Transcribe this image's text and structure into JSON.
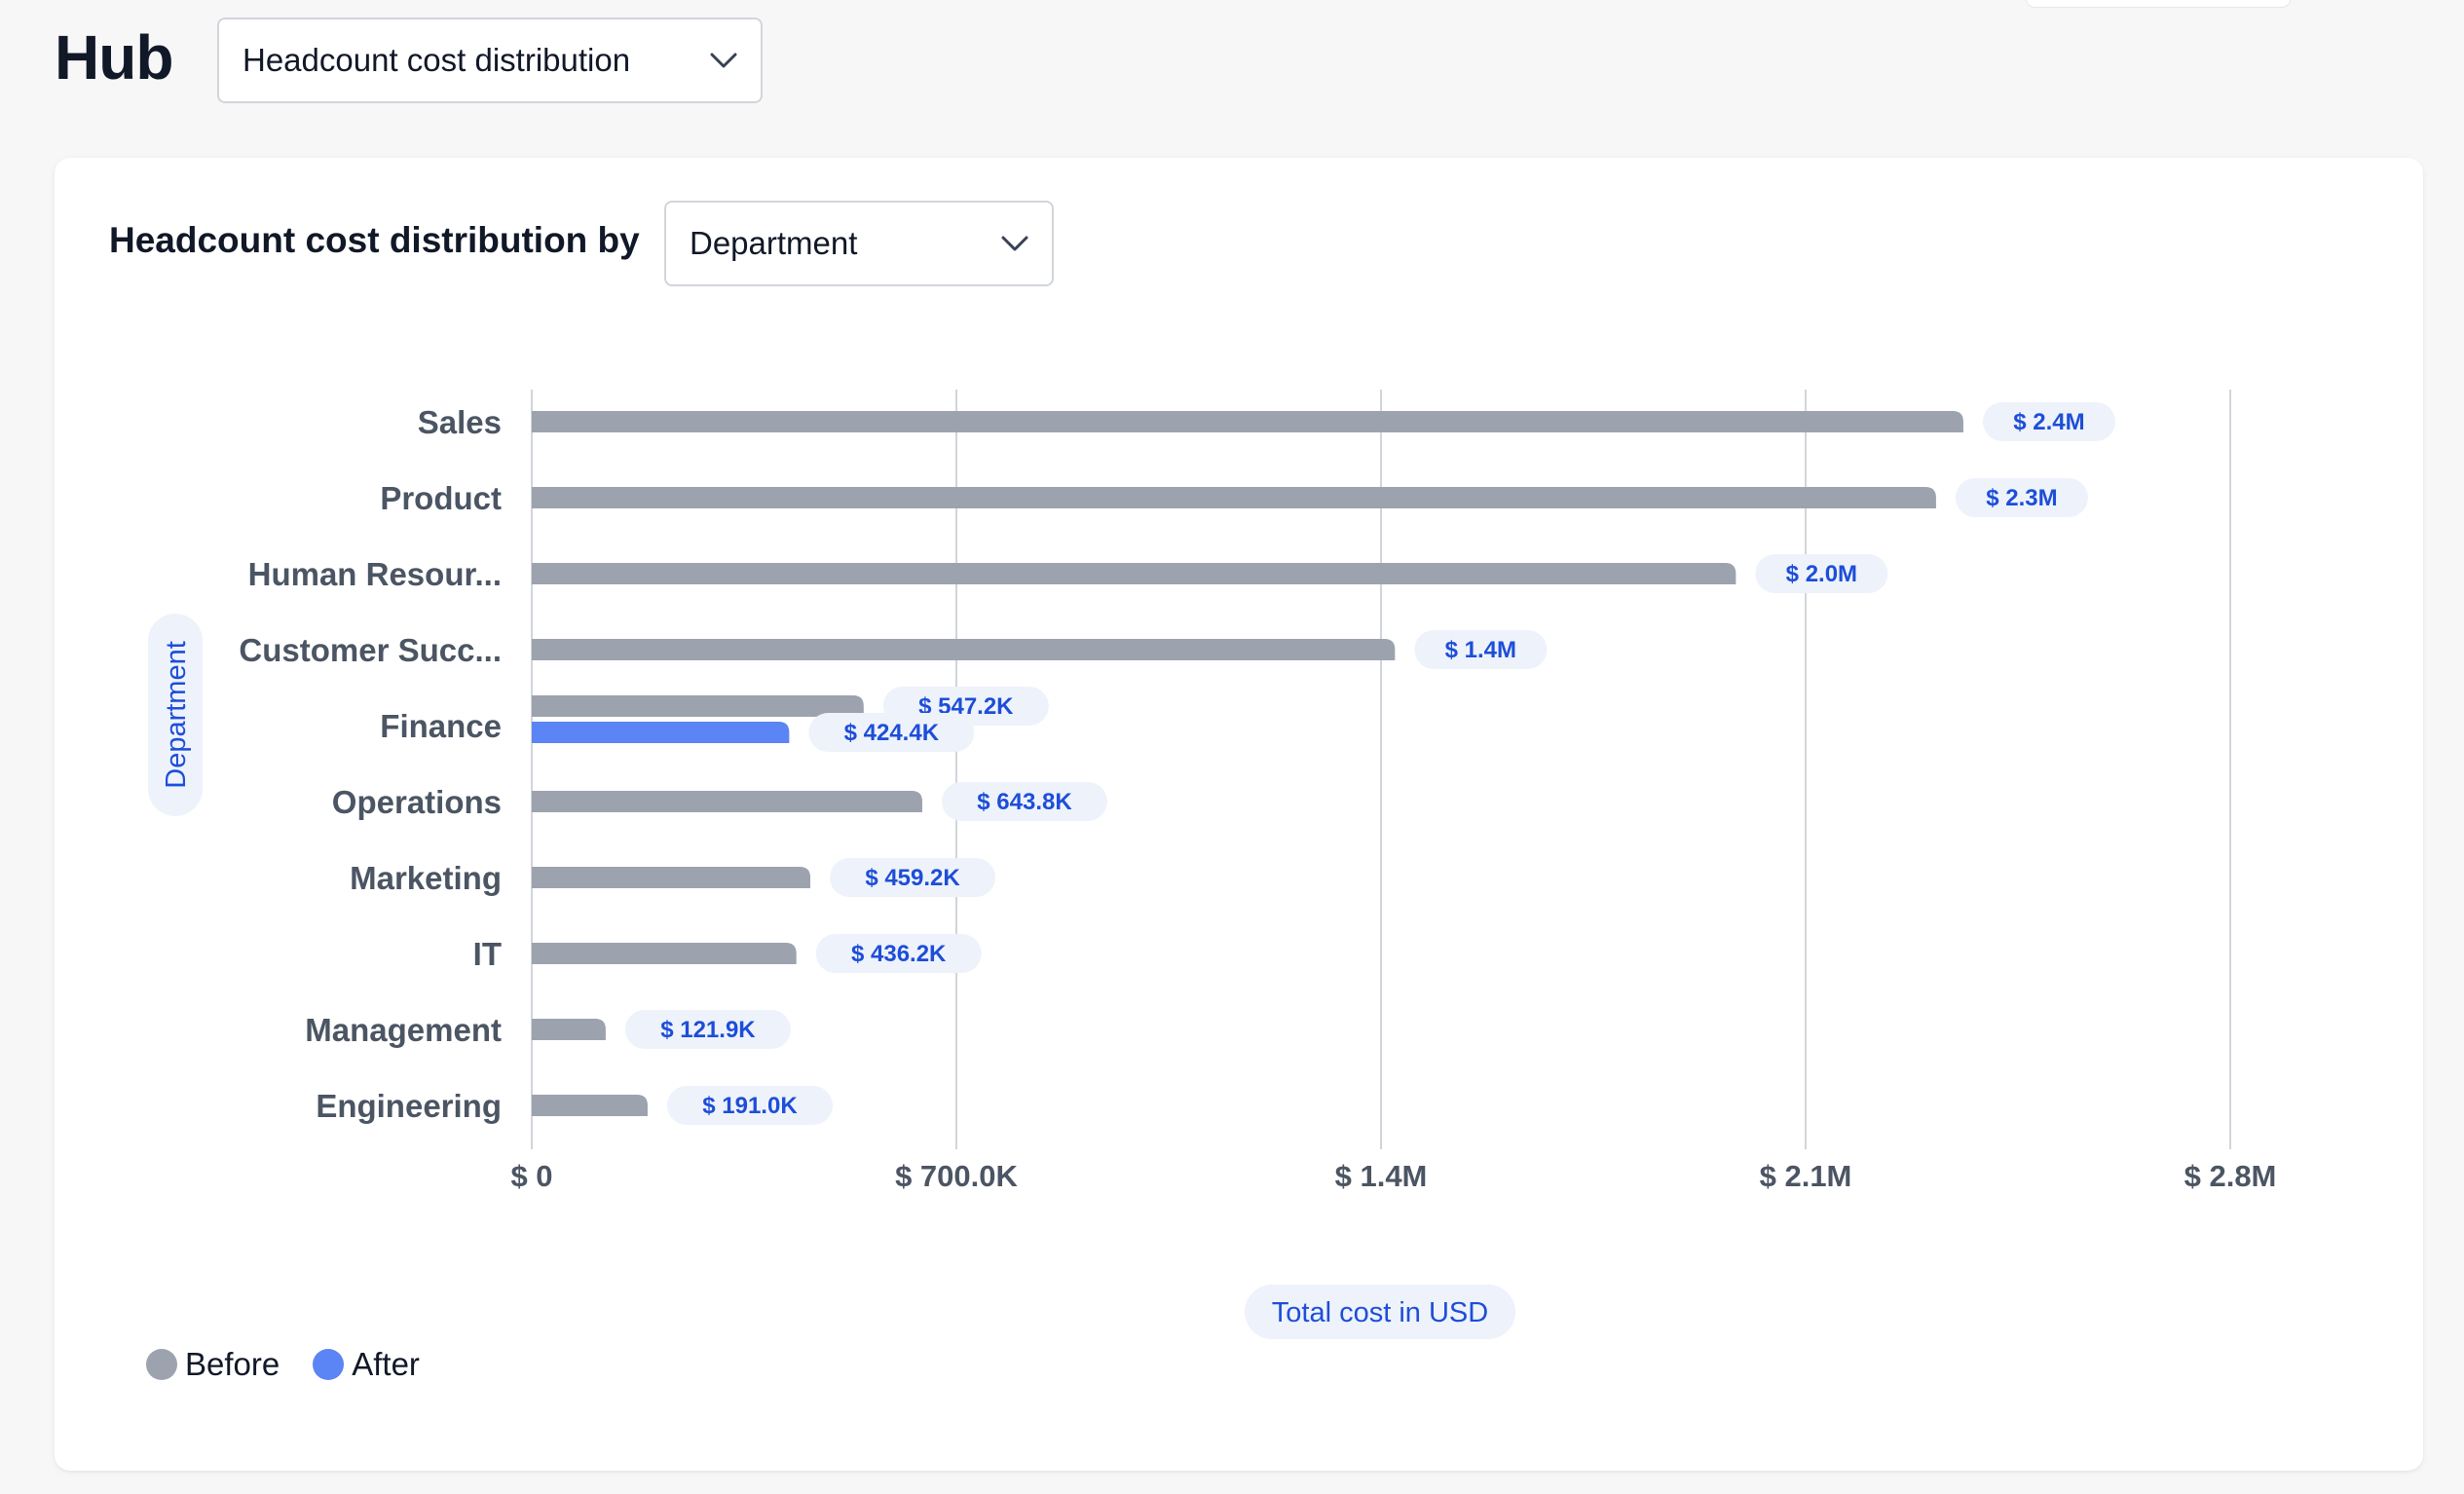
{
  "header": {
    "title": "Hub",
    "view_select": {
      "value": "Headcount cost distribution"
    }
  },
  "card": {
    "title": "Headcount cost distribution by",
    "dimension_select": {
      "value": "Department"
    }
  },
  "colors": {
    "before": "#9ca3af",
    "after": "#5b84f5",
    "label_text": "#1d4ed8",
    "label_bg": "#eef2fb",
    "axis_text": "#4b5563",
    "grid": "#d1d5db"
  },
  "chart_data": {
    "type": "bar",
    "orientation": "horizontal",
    "xlabel": "Total cost in USD",
    "ylabel": "Department",
    "xlim": [
      0,
      2800000
    ],
    "xticks": [
      {
        "value": 0,
        "label": "$ 0"
      },
      {
        "value": 700000,
        "label": "$ 700.0K"
      },
      {
        "value": 1400000,
        "label": "$ 1.4M"
      },
      {
        "value": 2100000,
        "label": "$ 2.1M"
      },
      {
        "value": 2800000,
        "label": "$ 2.8M"
      }
    ],
    "grid": true,
    "legend": "bottom-left",
    "categories": [
      "Sales",
      "Product",
      "Human Resour...",
      "Customer Succ...",
      "Finance",
      "Operations",
      "Marketing",
      "IT",
      "Management",
      "Engineering"
    ],
    "series": [
      {
        "name": "Before",
        "values": [
          2360000,
          2315000,
          1985000,
          1423000,
          547200,
          643800,
          459200,
          436200,
          121900,
          191000
        ],
        "labels": [
          "$ 2.4M",
          "$ 2.3M",
          "$ 2.0M",
          "$ 1.4M",
          "$ 547.2K",
          "$ 643.8K",
          "$ 459.2K",
          "$ 436.2K",
          "$ 121.9K",
          "$ 191.0K"
        ]
      },
      {
        "name": "After",
        "values": [
          null,
          null,
          null,
          null,
          424400,
          null,
          null,
          null,
          null,
          null
        ],
        "labels": [
          null,
          null,
          null,
          null,
          "$ 424.4K",
          null,
          null,
          null,
          null,
          null
        ]
      }
    ]
  }
}
